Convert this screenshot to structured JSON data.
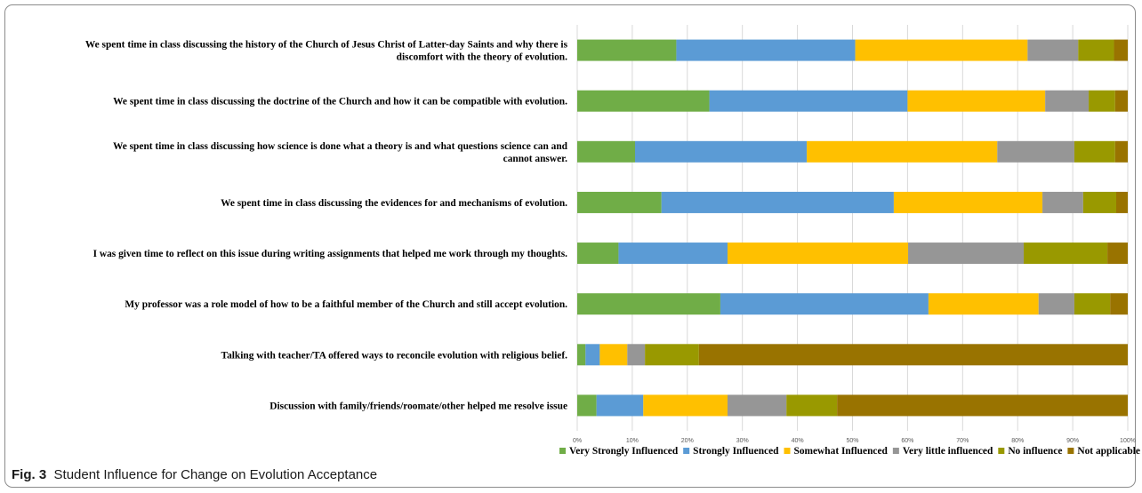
{
  "chart_data": {
    "type": "bar",
    "orientation": "horizontal",
    "stacked": true,
    "percent_stacked": true,
    "categories": [
      [
        "We spent time in class discussing the history of the Church of Jesus Christ of Latter-day Saints and why there is",
        "discomfort with the theory of evolution."
      ],
      [
        "We spent time in class discussing the doctrine of the Church and how it can be compatible with evolution."
      ],
      [
        "We spent time in class discussing how science is done  what a theory is and what questions science can and",
        "cannot answer."
      ],
      [
        "We spent time in class discussing the evidences for and mechanisms of evolution."
      ],
      [
        "I was given time to reflect on this issue during  writing assignments that helped me work through my thoughts."
      ],
      [
        "My professor was a role model of how to be a faithful member of the Church and still accept evolution."
      ],
      [
        "Talking with teacher/TA offered ways to reconcile evolution with religious belief."
      ],
      [
        "Discussion with family/friends/roomate/other helped me resolve issue"
      ]
    ],
    "series": [
      {
        "name": "Very Strongly Influenced",
        "color": "#70ad47",
        "values": [
          18,
          24,
          10.5,
          15.3,
          7.5,
          26,
          1.5,
          3.5
        ]
      },
      {
        "name": "Strongly Influenced",
        "color": "#5b9bd5",
        "values": [
          32.5,
          36,
          31.2,
          42.2,
          19.8,
          37.8,
          2.6,
          8.5
        ]
      },
      {
        "name": "Somewhat Influenced",
        "color": "#ffc000",
        "values": [
          31.3,
          25,
          34.6,
          27,
          32.8,
          20,
          5,
          15.3
        ]
      },
      {
        "name": "Very little influenced",
        "color": "#969696",
        "values": [
          9.2,
          7.9,
          14,
          7.4,
          21,
          6.5,
          3.2,
          10.7
        ]
      },
      {
        "name": "No influence",
        "color": "#999900",
        "values": [
          6.5,
          4.8,
          7.4,
          6,
          15.2,
          6.5,
          9.8,
          9.2
        ]
      },
      {
        "name": "Not applicable",
        "color": "#997300",
        "values": [
          2.5,
          2.3,
          2.3,
          2.1,
          3.7,
          3.2,
          77.9,
          52.8
        ]
      }
    ],
    "x_ticks": [
      "0%",
      "10%",
      "20%",
      "30%",
      "40%",
      "50%",
      "60%",
      "70%",
      "80%",
      "90%",
      "100%"
    ],
    "xlim": [
      0,
      100
    ],
    "grid": true,
    "legend_position": "bottom"
  },
  "caption": {
    "figure_label": "Fig. 3",
    "text": "Student Influence for Change on Evolution Acceptance"
  }
}
